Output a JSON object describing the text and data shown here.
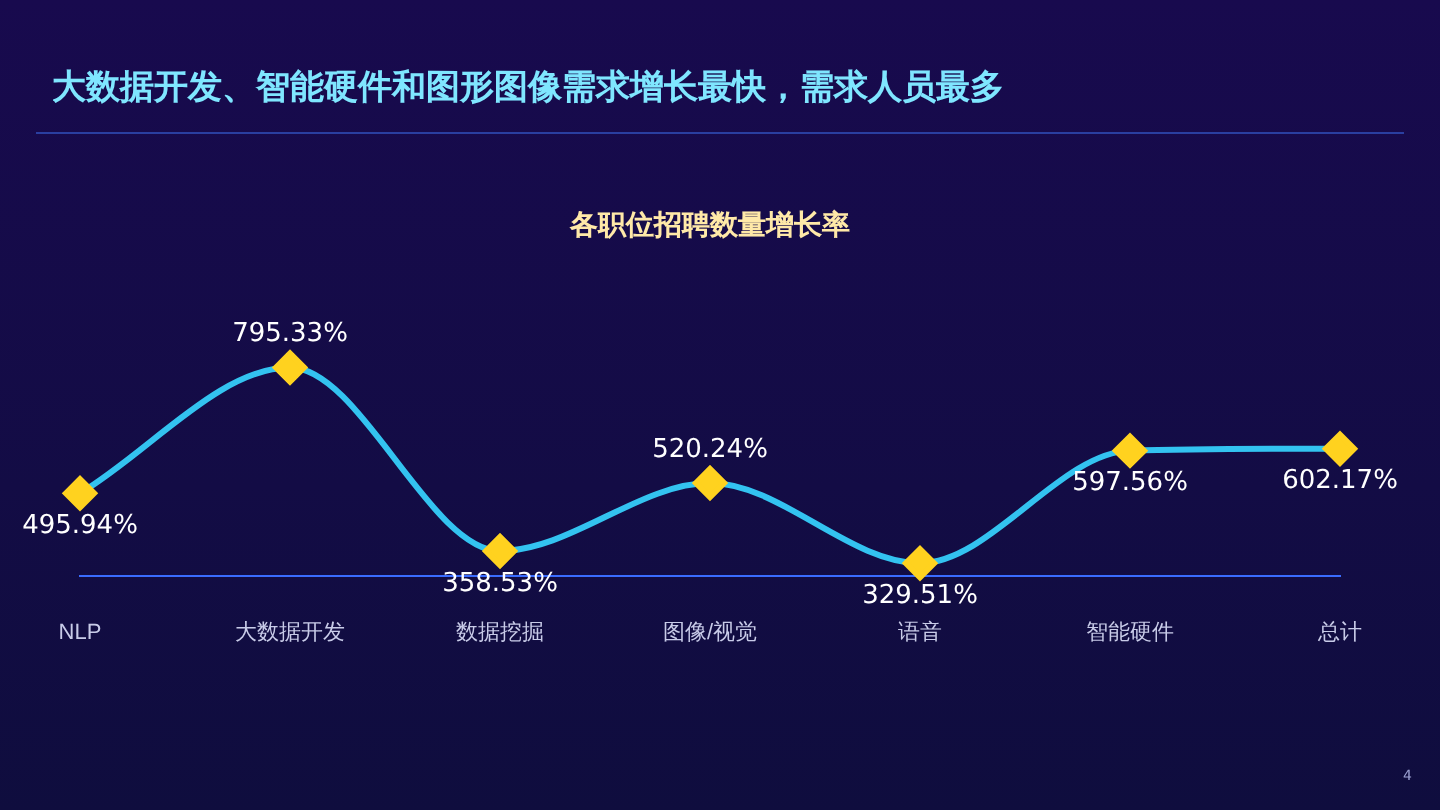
{
  "chart_data": {
    "type": "line",
    "title": "大数据开发、智能硬件和图形图像需求增长最快，需求人员最多",
    "subtitle": "各职位招聘数量增长率",
    "categories": [
      "NLP",
      "大数据开发",
      "数据挖掘",
      "图像/视觉",
      "语音",
      "智能硬件",
      "总计"
    ],
    "series": [
      {
        "color": "#33c3f0",
        "values": [
          495.94,
          795.33,
          358.53,
          520.24,
          329.51,
          597.56,
          602.17
        ],
        "value_labels": [
          "495.94%",
          "795.33%",
          "358.53%",
          "520.24%",
          "329.51%",
          "597.56%",
          "602.17%"
        ]
      }
    ],
    "marker": "diamond",
    "grid": false,
    "legend": false,
    "tick_labels": "x",
    "annotations": [
      "4"
    ]
  }
}
